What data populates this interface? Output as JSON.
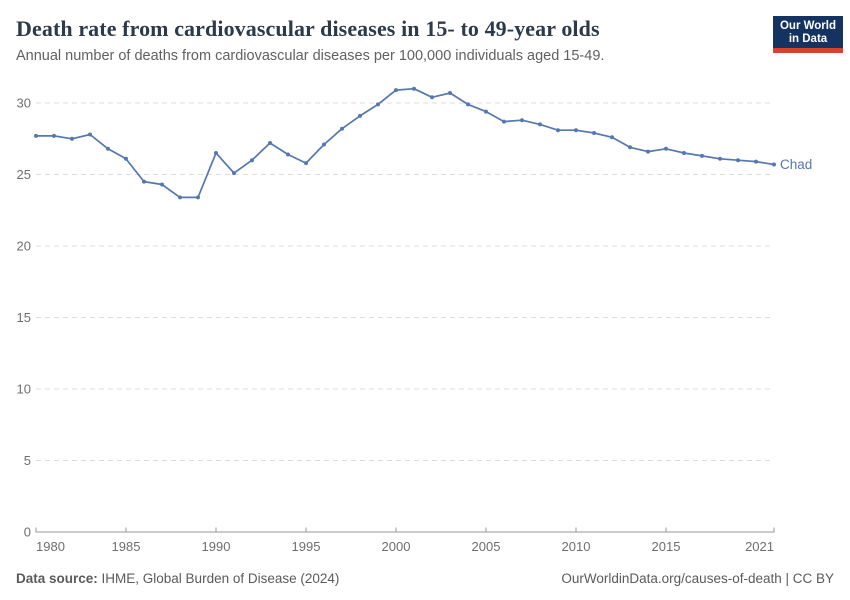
{
  "header": {
    "title": "Death rate from cardiovascular diseases in 15- to 49-year olds",
    "subtitle": "Annual number of deaths from cardiovascular diseases per 100,000 individuals aged 15-49.",
    "logo": {
      "line1": "Our World",
      "line2": "in Data"
    }
  },
  "chart_data": {
    "type": "line",
    "title": "Death rate from cardiovascular diseases in 15- to 49-year olds",
    "subtitle": "Annual number of deaths from cardiovascular diseases per 100,000 individuals aged 15-49.",
    "xlabel": "",
    "ylabel": "",
    "x": [
      1980,
      1981,
      1982,
      1983,
      1984,
      1985,
      1986,
      1987,
      1988,
      1989,
      1990,
      1991,
      1992,
      1993,
      1994,
      1995,
      1996,
      1997,
      1998,
      1999,
      2000,
      2001,
      2002,
      2003,
      2004,
      2005,
      2006,
      2007,
      2008,
      2009,
      2010,
      2011,
      2012,
      2013,
      2014,
      2015,
      2016,
      2017,
      2018,
      2019,
      2020,
      2021
    ],
    "series": [
      {
        "name": "Chad",
        "color": "#5777b0",
        "values": [
          27.7,
          27.7,
          27.5,
          27.8,
          26.8,
          26.1,
          24.5,
          24.3,
          23.4,
          23.4,
          26.5,
          25.1,
          26.0,
          27.2,
          26.4,
          25.8,
          27.1,
          28.2,
          29.1,
          29.9,
          30.9,
          31.0,
          30.4,
          30.7,
          29.9,
          29.4,
          28.7,
          28.8,
          28.5,
          28.1,
          28.1,
          27.9,
          27.6,
          26.9,
          26.6,
          26.8,
          26.5,
          26.3,
          26.1,
          26.0,
          25.9,
          25.7
        ]
      }
    ],
    "xticks": [
      1980,
      1985,
      1990,
      1995,
      2000,
      2005,
      2010,
      2015,
      2021
    ],
    "yticks": [
      0,
      5,
      10,
      15,
      20,
      25,
      30
    ],
    "ylim": [
      0,
      31.5
    ],
    "grid": "horizontal-dashed",
    "legend": "end-of-line-label"
  },
  "footer": {
    "datasource_label": "Data source:",
    "datasource_text": " IHME, Global Burden of Disease (2024)",
    "rights": "OurWorldinData.org/causes-of-death | CC BY"
  },
  "colors": {
    "line": "#5777b0",
    "title": "#2c3a4a",
    "subtitle": "#616161",
    "axis_text": "#6e6e6e",
    "axis_line": "#999999",
    "grid": "#dcdcdc",
    "footer_text": "#5b5b5b",
    "logo_bg": "#153360",
    "logo_red": "#d8402f"
  }
}
